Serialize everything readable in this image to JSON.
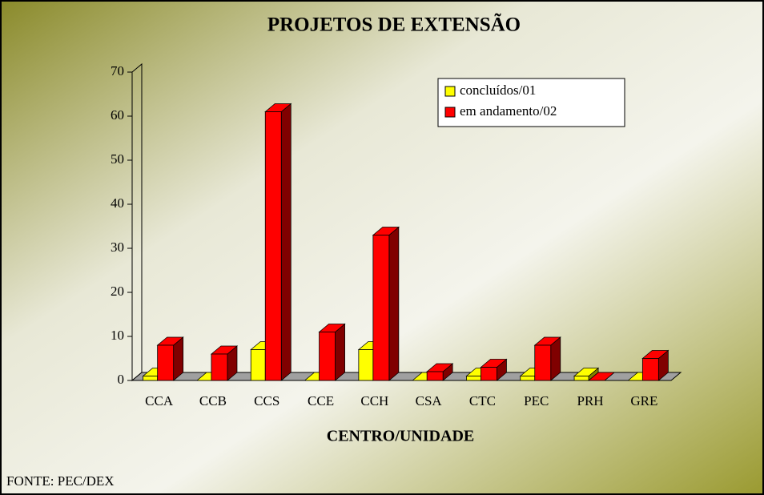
{
  "chart_data": {
    "type": "bar3d",
    "title": "PROJETOS DE EXTENSÃO",
    "x_label": "CENTRO/UNIDADE",
    "source": "FONTE: PEC/DEX",
    "categories": [
      "CCA",
      "CCB",
      "CCS",
      "CCE",
      "CCH",
      "CSA",
      "CTC",
      "PEC",
      "PRH",
      "GRE"
    ],
    "series": [
      {
        "name": "concluídos/01",
        "color": "#ffff00",
        "side": "#808000",
        "values": [
          1,
          0,
          7,
          0,
          7,
          0,
          1,
          1,
          1,
          0
        ]
      },
      {
        "name": "em andamento/02",
        "color": "#ff0000",
        "side": "#800000",
        "values": [
          8,
          6,
          61,
          11,
          33,
          2,
          3,
          8,
          0,
          5
        ]
      }
    ],
    "ylim": [
      0,
      70
    ],
    "yticks": [
      0,
      10,
      20,
      30,
      40,
      50,
      60,
      70
    ],
    "legend": "top-right",
    "grid": false
  }
}
